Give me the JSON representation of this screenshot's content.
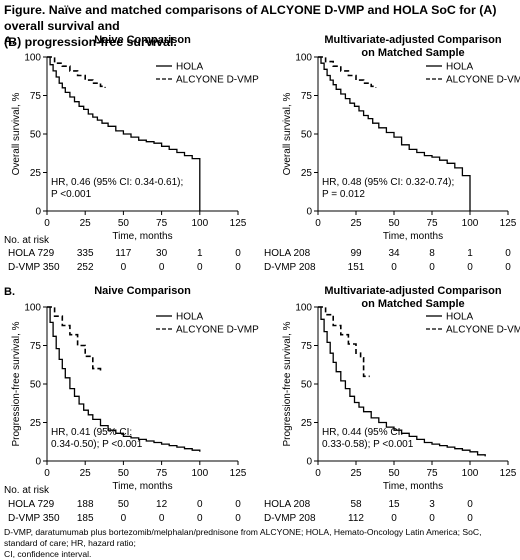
{
  "figure": {
    "title_line1": "Figure. Naïve and matched comparisons of ALCYONE D-VMP and HOLA SoC for (A) overall survival and",
    "title_line2": "(B) progression-free survival.",
    "footnote_line1": "D-VMP, daratumumab plus bortezomib/melphalan/prednisone from ALCYONE; HOLA, Hemato-Oncology Latin America; SoC, standard of care; HR, hazard ratio;",
    "footnote_line2": "CI, confidence interval."
  },
  "sections": [
    {
      "label": "A.",
      "row_label": "No. at risk"
    },
    {
      "label": "B.",
      "row_label": "No. at risk"
    }
  ],
  "colors": {
    "hola": "#000000",
    "dvmp": "#000000"
  },
  "chart_data": [
    {
      "type": "line",
      "title_lines": [
        "Naive Comparison"
      ],
      "xlabel": "Time, months",
      "ylabel": "Overall survival, %",
      "xlim": [
        0,
        125
      ],
      "ylim": [
        0,
        100
      ],
      "xticks": [
        0,
        25,
        50,
        75,
        100,
        125
      ],
      "yticks": [
        0,
        25,
        50,
        75,
        100
      ],
      "legend_position": "top-right",
      "legend": [
        "HOLA",
        "ALCYONE D-VMP"
      ],
      "annotation_lines": [
        "HR, 0.46 (95% CI: 0.34-0.61);",
        "P <0.001"
      ],
      "series": [
        {
          "name": "HOLA",
          "style": "solid",
          "x": [
            0,
            2,
            4,
            6,
            8,
            10,
            12,
            15,
            18,
            21,
            24,
            27,
            30,
            33,
            36,
            40,
            45,
            50,
            55,
            60,
            65,
            70,
            75,
            80,
            85,
            90,
            95,
            100,
            100
          ],
          "y": [
            100,
            95,
            91,
            87,
            83,
            80,
            77,
            74,
            71,
            68,
            66,
            63,
            61,
            59,
            57,
            55,
            52,
            50,
            48,
            46,
            45,
            44,
            42,
            40,
            38,
            36,
            34,
            34,
            0
          ]
        },
        {
          "name": "ALCYONE D-VMP",
          "style": "dashed",
          "x": [
            0,
            5,
            10,
            15,
            20,
            25,
            30,
            35,
            38
          ],
          "y": [
            100,
            96,
            94,
            91,
            88,
            85,
            83,
            81,
            80
          ]
        }
      ],
      "risk_rows": [
        {
          "label": "HOLA 729",
          "values": [
            "335",
            "117",
            "30",
            "1",
            "0"
          ]
        },
        {
          "label": "D-VMP 350",
          "values": [
            "252",
            "0",
            "0",
            "0",
            "0"
          ]
        }
      ]
    },
    {
      "type": "line",
      "title_lines": [
        "Multivariate-adjusted Comparison",
        "on Matched Sample"
      ],
      "xlabel": "Time, months",
      "ylabel": "Overall survival, %",
      "xlim": [
        0,
        125
      ],
      "ylim": [
        0,
        100
      ],
      "xticks": [
        0,
        25,
        50,
        75,
        100,
        125
      ],
      "yticks": [
        0,
        25,
        50,
        75,
        100
      ],
      "legend_position": "top-right",
      "legend": [
        "HOLA",
        "ALCYONE D-VMP"
      ],
      "annotation_lines": [
        "HR, 0.48 (95% CI: 0.32-0.74);",
        "P = 0.012"
      ],
      "series": [
        {
          "name": "HOLA",
          "style": "solid",
          "x": [
            0,
            2,
            4,
            6,
            8,
            10,
            12,
            15,
            18,
            21,
            24,
            27,
            30,
            33,
            36,
            40,
            45,
            50,
            55,
            60,
            65,
            70,
            75,
            80,
            85,
            90,
            95,
            100,
            100
          ],
          "y": [
            100,
            96,
            92,
            88,
            85,
            82,
            79,
            76,
            73,
            70,
            68,
            65,
            62,
            60,
            57,
            54,
            51,
            48,
            43,
            40,
            38,
            36,
            35,
            33,
            31,
            28,
            23,
            23,
            0
          ]
        },
        {
          "name": "ALCYONE D-VMP",
          "style": "dashed",
          "x": [
            0,
            5,
            10,
            15,
            20,
            25,
            30,
            35,
            38
          ],
          "y": [
            100,
            97,
            94,
            91,
            88,
            85,
            83,
            81,
            80
          ]
        }
      ],
      "risk_rows": [
        {
          "label": "HOLA 208",
          "values": [
            "99",
            "34",
            "8",
            "1",
            "0"
          ]
        },
        {
          "label": "D-VMP 208",
          "values": [
            "151",
            "0",
            "0",
            "0",
            "0"
          ]
        }
      ]
    },
    {
      "type": "line",
      "title_lines": [
        "Naive Comparison"
      ],
      "xlabel": "Time, months",
      "ylabel": "Progression-free survival, %",
      "xlim": [
        0,
        125
      ],
      "ylim": [
        0,
        100
      ],
      "xticks": [
        0,
        25,
        50,
        75,
        100,
        125
      ],
      "yticks": [
        0,
        25,
        50,
        75,
        100
      ],
      "legend_position": "top-right",
      "legend": [
        "HOLA",
        "ALCYONE D-VMP"
      ],
      "annotation_lines": [
        "HR, 0.41 (95% CI:",
        "0.34-0.50); P <0.001"
      ],
      "series": [
        {
          "name": "HOLA",
          "style": "solid",
          "x": [
            0,
            2,
            4,
            6,
            8,
            10,
            12,
            15,
            18,
            21,
            24,
            27,
            30,
            35,
            40,
            45,
            50,
            55,
            60,
            65,
            70,
            75,
            80,
            85,
            90,
            95,
            100
          ],
          "y": [
            100,
            90,
            81,
            73,
            66,
            60,
            54,
            47,
            42,
            37,
            33,
            30,
            27,
            23,
            20,
            18,
            16,
            15,
            14,
            13,
            12,
            11,
            10,
            9,
            8,
            7,
            6
          ]
        },
        {
          "name": "ALCYONE D-VMP",
          "style": "dashed",
          "x": [
            0,
            5,
            10,
            15,
            20,
            25,
            30,
            35
          ],
          "y": [
            100,
            94,
            88,
            82,
            75,
            68,
            60,
            57
          ]
        }
      ],
      "risk_rows": [
        {
          "label": "HOLA 729",
          "values": [
            "188",
            "50",
            "12",
            "0",
            "0"
          ]
        },
        {
          "label": "D-VMP 350",
          "values": [
            "185",
            "0",
            "0",
            "0",
            "0"
          ]
        }
      ]
    },
    {
      "type": "line",
      "title_lines": [
        "Multivariate-adjusted Comparison",
        "on Matched Sample"
      ],
      "xlabel": "Time, months",
      "ylabel": "Progression-free survival, %",
      "xlim": [
        0,
        125
      ],
      "ylim": [
        0,
        100
      ],
      "xticks": [
        0,
        25,
        50,
        75,
        100,
        125
      ],
      "yticks": [
        0,
        25,
        50,
        75,
        100
      ],
      "legend_position": "top-right",
      "legend": [
        "HOLA",
        "ALCYONE D-VMP"
      ],
      "annotation_lines": [
        "HR, 0.44 (95% CI:",
        "0.33-0.58); P <0.001"
      ],
      "series": [
        {
          "name": "HOLA",
          "style": "solid",
          "x": [
            0,
            2,
            4,
            6,
            8,
            10,
            12,
            15,
            18,
            21,
            24,
            27,
            30,
            35,
            40,
            45,
            50,
            55,
            60,
            65,
            70,
            75,
            80,
            85,
            90,
            95,
            100,
            105,
            110
          ],
          "y": [
            100,
            92,
            84,
            77,
            70,
            64,
            58,
            52,
            47,
            42,
            38,
            35,
            32,
            28,
            25,
            22,
            20,
            18,
            16,
            14,
            12,
            11,
            10,
            9,
            8,
            7,
            6,
            4,
            3
          ]
        },
        {
          "name": "ALCYONE D-VMP",
          "style": "dashed",
          "x": [
            0,
            5,
            10,
            15,
            20,
            25,
            28,
            30,
            30,
            32,
            34
          ],
          "y": [
            100,
            95,
            88,
            82,
            76,
            70,
            67,
            62,
            55,
            55,
            55
          ]
        }
      ],
      "risk_rows": [
        {
          "label": "HOLA 208",
          "values": [
            "58",
            "15",
            "3",
            "0"
          ]
        },
        {
          "label": "D-VMP 208",
          "values": [
            "112",
            "0",
            "0",
            "0"
          ]
        }
      ]
    }
  ]
}
